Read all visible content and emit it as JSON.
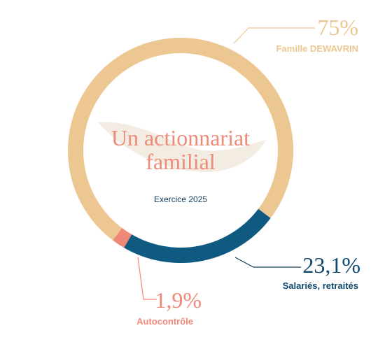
{
  "chart_data": {
    "type": "donut",
    "title": "Un actionnariat familial",
    "subtitle": "Exercice 2025",
    "categories": [
      "Famille DEWAVRIN",
      "Salariés, retraités",
      "Autocontrôle"
    ],
    "values": [
      75,
      23.1,
      1.9
    ],
    "value_labels": [
      "75%",
      "23,1%",
      "1,9%"
    ],
    "colors": [
      "#edc791",
      "#0f5a80",
      "#f0887a"
    ]
  }
}
